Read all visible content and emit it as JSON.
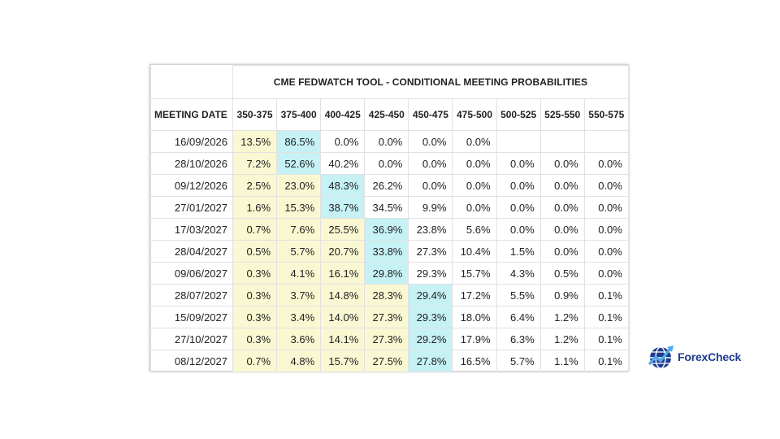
{
  "table": {
    "title": "CME FEDWATCH TOOL - CONDITIONAL MEETING PROBABILITIES",
    "date_header": "MEETING DATE",
    "rate_headers": [
      "350-375",
      "375-400",
      "400-425",
      "425-450",
      "450-475",
      "475-500",
      "500-525",
      "525-550",
      "550-575"
    ],
    "rows": [
      {
        "date": "16/09/2026",
        "values": [
          "13.5%",
          "86.5%",
          "0.0%",
          "0.0%",
          "0.0%",
          "0.0%",
          "",
          "",
          ""
        ],
        "highlight": [
          0,
          1
        ]
      },
      {
        "date": "28/10/2026",
        "values": [
          "7.2%",
          "52.6%",
          "40.2%",
          "0.0%",
          "0.0%",
          "0.0%",
          "0.0%",
          "0.0%",
          "0.0%"
        ],
        "highlight": [
          0,
          1
        ]
      },
      {
        "date": "09/12/2026",
        "values": [
          "2.5%",
          "23.0%",
          "48.3%",
          "26.2%",
          "0.0%",
          "0.0%",
          "0.0%",
          "0.0%",
          "0.0%"
        ],
        "highlight": [
          0,
          2
        ]
      },
      {
        "date": "27/01/2027",
        "values": [
          "1.6%",
          "15.3%",
          "38.7%",
          "34.5%",
          "9.9%",
          "0.0%",
          "0.0%",
          "0.0%",
          "0.0%"
        ],
        "highlight": [
          0,
          2
        ]
      },
      {
        "date": "17/03/2027",
        "values": [
          "0.7%",
          "7.6%",
          "25.5%",
          "36.9%",
          "23.8%",
          "5.6%",
          "0.0%",
          "0.0%",
          "0.0%"
        ],
        "highlight": [
          0,
          3
        ]
      },
      {
        "date": "28/04/2027",
        "values": [
          "0.5%",
          "5.7%",
          "20.7%",
          "33.8%",
          "27.3%",
          "10.4%",
          "1.5%",
          "0.0%",
          "0.0%"
        ],
        "highlight": [
          0,
          3
        ]
      },
      {
        "date": "09/06/2027",
        "values": [
          "0.3%",
          "4.1%",
          "16.1%",
          "29.8%",
          "29.3%",
          "15.7%",
          "4.3%",
          "0.5%",
          "0.0%"
        ],
        "highlight": [
          0,
          3
        ]
      },
      {
        "date": "28/07/2027",
        "values": [
          "0.3%",
          "3.7%",
          "14.8%",
          "28.3%",
          "29.4%",
          "17.2%",
          "5.5%",
          "0.9%",
          "0.1%"
        ],
        "highlight": [
          0,
          4
        ]
      },
      {
        "date": "15/09/2027",
        "values": [
          "0.3%",
          "3.4%",
          "14.0%",
          "27.3%",
          "29.3%",
          "18.0%",
          "6.4%",
          "1.2%",
          "0.1%"
        ],
        "highlight": [
          0,
          4
        ]
      },
      {
        "date": "27/10/2027",
        "values": [
          "0.3%",
          "3.6%",
          "14.1%",
          "27.3%",
          "29.2%",
          "17.9%",
          "6.3%",
          "1.2%",
          "0.1%"
        ],
        "highlight": [
          0,
          4
        ]
      },
      {
        "date": "08/12/2027",
        "values": [
          "0.7%",
          "4.8%",
          "15.7%",
          "27.5%",
          "27.8%",
          "16.5%",
          "5.7%",
          "1.1%",
          "0.1%"
        ],
        "highlight": [
          0,
          4
        ]
      }
    ]
  },
  "colors": {
    "yellow": "#f9f8d2",
    "cyan": "#c6f1f5",
    "border": "#e1e1e1"
  },
  "logo": {
    "text": "ForexCheck",
    "icon": "globe-chart-icon"
  }
}
